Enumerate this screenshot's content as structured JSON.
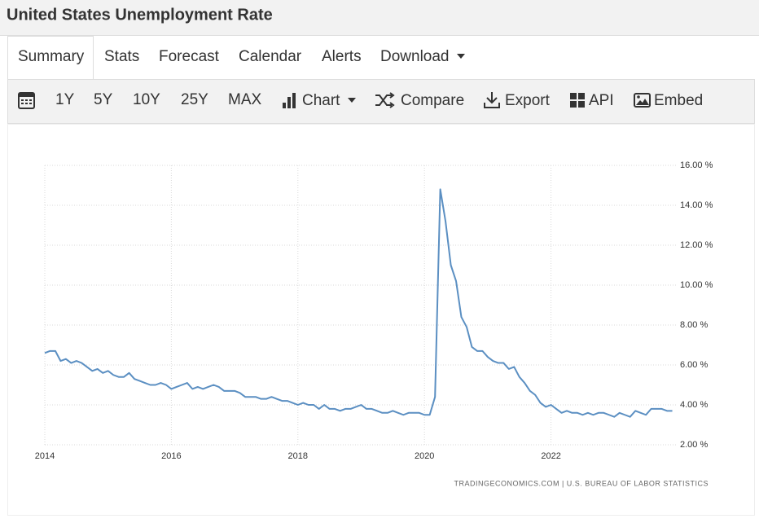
{
  "header": {
    "title": "United States Unemployment Rate"
  },
  "tabs": [
    "Summary",
    "Stats",
    "Forecast",
    "Calendar",
    "Alerts",
    "Download"
  ],
  "toolbar": [
    "1Y",
    "5Y",
    "10Y",
    "25Y",
    "MAX",
    "Chart",
    "Compare",
    "Export",
    "API",
    "Embed"
  ],
  "chart_data": {
    "type": "line",
    "x": [
      2014,
      2014.083,
      2014.167,
      2014.25,
      2014.333,
      2014.417,
      2014.5,
      2014.583,
      2014.667,
      2014.75,
      2014.833,
      2014.917,
      2015,
      2015.083,
      2015.167,
      2015.25,
      2015.333,
      2015.417,
      2015.5,
      2015.583,
      2015.667,
      2015.75,
      2015.833,
      2015.917,
      2016,
      2016.083,
      2016.167,
      2016.25,
      2016.333,
      2016.417,
      2016.5,
      2016.583,
      2016.667,
      2016.75,
      2016.833,
      2016.917,
      2017,
      2017.083,
      2017.167,
      2017.25,
      2017.333,
      2017.417,
      2017.5,
      2017.583,
      2017.667,
      2017.75,
      2017.833,
      2017.917,
      2018,
      2018.083,
      2018.167,
      2018.25,
      2018.333,
      2018.417,
      2018.5,
      2018.583,
      2018.667,
      2018.75,
      2018.833,
      2018.917,
      2019,
      2019.083,
      2019.167,
      2019.25,
      2019.333,
      2019.417,
      2019.5,
      2019.583,
      2019.667,
      2019.75,
      2019.833,
      2019.917,
      2020,
      2020.083,
      2020.167,
      2020.25,
      2020.333,
      2020.417,
      2020.5,
      2020.583,
      2020.667,
      2020.75,
      2020.833,
      2020.917,
      2021,
      2021.083,
      2021.167,
      2021.25,
      2021.333,
      2021.417,
      2021.5,
      2021.583,
      2021.667,
      2021.75,
      2021.833,
      2021.917,
      2022,
      2022.083,
      2022.167,
      2022.25,
      2022.333,
      2022.417,
      2022.5,
      2022.583,
      2022.667,
      2022.75,
      2022.833,
      2022.917,
      2023,
      2023.083,
      2023.167,
      2023.25,
      2023.333,
      2023.417,
      2023.5,
      2023.583,
      2023.667,
      2023.75,
      2023.833,
      2023.917
    ],
    "values": [
      6.6,
      6.7,
      6.7,
      6.2,
      6.3,
      6.1,
      6.2,
      6.1,
      5.9,
      5.7,
      5.8,
      5.6,
      5.7,
      5.5,
      5.4,
      5.4,
      5.6,
      5.3,
      5.2,
      5.1,
      5.0,
      5.0,
      5.1,
      5.0,
      4.8,
      4.9,
      5.0,
      5.1,
      4.8,
      4.9,
      4.8,
      4.9,
      5.0,
      4.9,
      4.7,
      4.7,
      4.7,
      4.6,
      4.4,
      4.4,
      4.4,
      4.3,
      4.3,
      4.4,
      4.3,
      4.2,
      4.2,
      4.1,
      4.0,
      4.1,
      4.0,
      4.0,
      3.8,
      4.0,
      3.8,
      3.8,
      3.7,
      3.8,
      3.8,
      3.9,
      4.0,
      3.8,
      3.8,
      3.7,
      3.6,
      3.6,
      3.7,
      3.6,
      3.5,
      3.6,
      3.6,
      3.6,
      3.5,
      3.5,
      4.4,
      14.8,
      13.2,
      11.0,
      10.2,
      8.4,
      7.9,
      6.9,
      6.7,
      6.7,
      6.4,
      6.2,
      6.1,
      6.1,
      5.8,
      5.9,
      5.4,
      5.1,
      4.7,
      4.5,
      4.1,
      3.9,
      4.0,
      3.8,
      3.6,
      3.7,
      3.6,
      3.6,
      3.5,
      3.6,
      3.5,
      3.6,
      3.6,
      3.5,
      3.4,
      3.6,
      3.5,
      3.4,
      3.7,
      3.6,
      3.5,
      3.8,
      3.8,
      3.8,
      3.7,
      3.7
    ],
    "color": "#5b8fc2",
    "xlim": [
      2014,
      2024
    ],
    "xticks": [
      2014,
      2016,
      2018,
      2020,
      2022
    ],
    "ylim": [
      2,
      16
    ],
    "yticks": [
      {
        "value": 2,
        "label": "2.00 %"
      },
      {
        "value": 4,
        "label": "4.00 %"
      },
      {
        "value": 6,
        "label": "6.00 %"
      },
      {
        "value": 8,
        "label": "8.00 %"
      },
      {
        "value": 10,
        "label": "10.00 %"
      },
      {
        "value": 12,
        "label": "12.00 %"
      },
      {
        "value": 14,
        "label": "14.00 %"
      },
      {
        "value": 16,
        "label": "16.00 %"
      }
    ],
    "grid": true,
    "source": "TRADINGECONOMICS.COM | U.S. BUREAU OF LABOR STATISTICS"
  }
}
